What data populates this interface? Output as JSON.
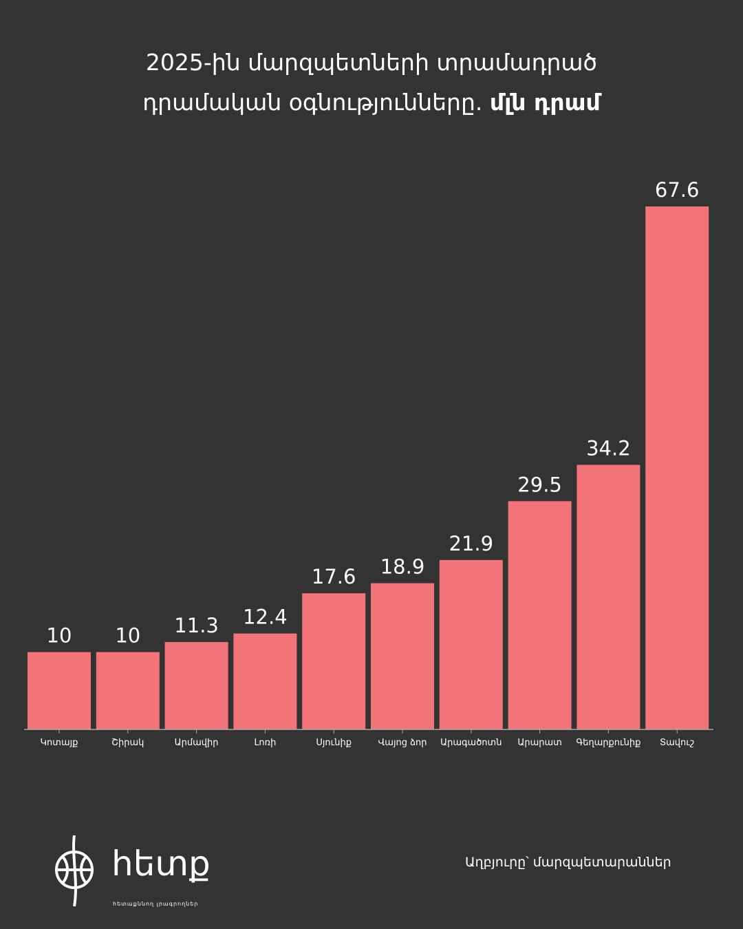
{
  "title": {
    "line1": "2025-ին մարզպետների տրամադրած",
    "line2": "դրամական օգնությունները.",
    "unit": "մլն դրամ"
  },
  "chart_data": {
    "type": "bar",
    "title": "2025-ին մարզպետների տրամադրած դրամական օգնությունները. մլն դրամ",
    "categories": [
      "Կոտայք",
      "Շիրակ",
      "Արմավիր",
      "Լոռի",
      "Սյունիք",
      "Վայոց ձոր",
      "Արագածոտն",
      "Արարատ",
      "Գեղարքունիք",
      "Տավուշ"
    ],
    "values": [
      10,
      10,
      11.3,
      12.4,
      17.6,
      18.9,
      21.9,
      29.5,
      34.2,
      67.6
    ],
    "value_labels": [
      "10",
      "10",
      "11.3",
      "12.4",
      "17.6",
      "18.9",
      "21.9",
      "29.5",
      "34.2",
      "67.6"
    ],
    "xlabel": "",
    "ylabel": "",
    "ylim": [
      0,
      67.6
    ],
    "grid": false,
    "bar_color": "#f27479"
  },
  "source": "Աղբյուրը՝ մարզպետարաններ",
  "logo": {
    "name": "հետք",
    "tagline": "հետաքննող լրագրողներ"
  },
  "colors": {
    "background": "#333333",
    "text": "#ffffff"
  }
}
